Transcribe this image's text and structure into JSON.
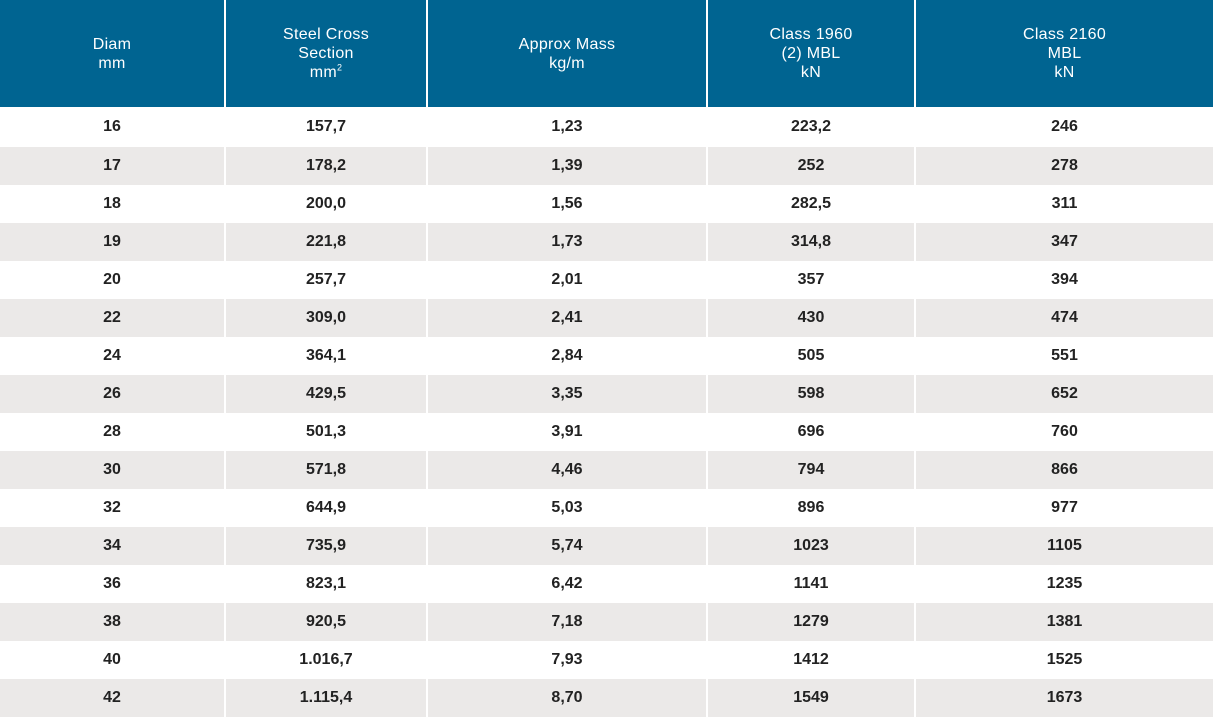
{
  "table": {
    "headers": [
      {
        "lines": [
          "Diam",
          "mm"
        ]
      },
      {
        "lines": [
          "Steel Cross",
          "Section",
          "mm"
        ],
        "unit_superscript": "2"
      },
      {
        "lines": [
          "Approx Mass",
          "kg/m"
        ]
      },
      {
        "lines": [
          "Class 1960",
          "(2) MBL",
          "kN"
        ]
      },
      {
        "lines": [
          "Class 2160",
          "MBL",
          "kN"
        ]
      }
    ],
    "rows": [
      [
        "16",
        "157,7",
        "1,23",
        "223,2",
        "246"
      ],
      [
        "17",
        "178,2",
        "1,39",
        "252",
        "278"
      ],
      [
        "18",
        "200,0",
        "1,56",
        "282,5",
        "311"
      ],
      [
        "19",
        "221,8",
        "1,73",
        "314,8",
        "347"
      ],
      [
        "20",
        "257,7",
        "2,01",
        "357",
        "394"
      ],
      [
        "22",
        "309,0",
        "2,41",
        "430",
        "474"
      ],
      [
        "24",
        "364,1",
        "2,84",
        "505",
        "551"
      ],
      [
        "26",
        "429,5",
        "3,35",
        "598",
        "652"
      ],
      [
        "28",
        "501,3",
        "3,91",
        "696",
        "760"
      ],
      [
        "30",
        "571,8",
        "4,46",
        "794",
        "866"
      ],
      [
        "32",
        "644,9",
        "5,03",
        "896",
        "977"
      ],
      [
        "34",
        "735,9",
        "5,74",
        "1023",
        "1105"
      ],
      [
        "36",
        "823,1",
        "6,42",
        "1141",
        "1235"
      ],
      [
        "38",
        "920,5",
        "7,18",
        "1279",
        "1381"
      ],
      [
        "40",
        "1.016,7",
        "7,93",
        "1412",
        "1525"
      ],
      [
        "42",
        "1.115,4",
        "8,70",
        "1549",
        "1673"
      ]
    ]
  },
  "colors": {
    "header_background": "#006491",
    "header_text": "#ffffff",
    "stripe_background": "#ebe9e8",
    "cell_text": "#222222"
  }
}
